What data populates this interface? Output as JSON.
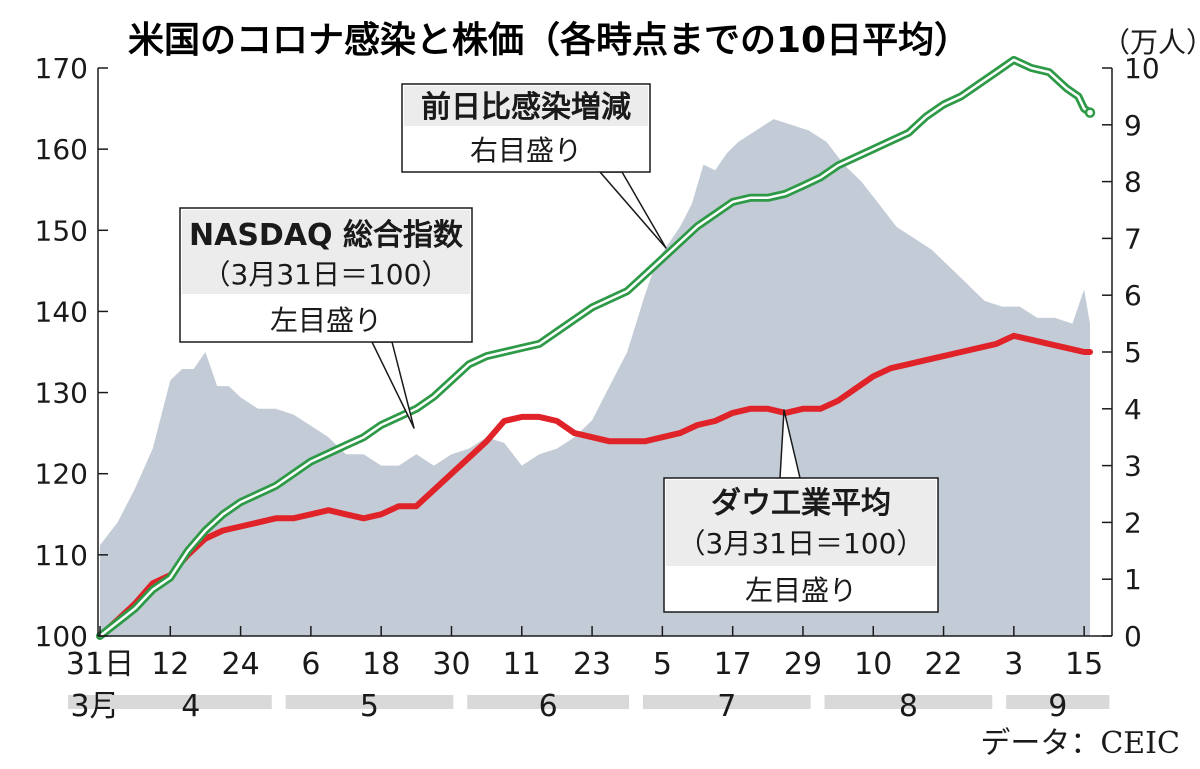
{
  "chart_data": {
    "type": "line",
    "title": "米国のコロナ感染と株価（各時点までの10日平均）",
    "source": "データ：CEIC",
    "x_ticks": [
      "31日",
      "12",
      "24",
      "6",
      "18",
      "30",
      "11",
      "23",
      "5",
      "17",
      "29",
      "10",
      "22",
      "3",
      "15"
    ],
    "month_labels": [
      "3月",
      "4",
      "5",
      "6",
      "7",
      "8",
      "9"
    ],
    "left_axis": {
      "ylim": [
        100,
        170
      ],
      "ticks": [
        "100",
        "110",
        "120",
        "130",
        "140",
        "150",
        "160",
        "170"
      ]
    },
    "right_axis": {
      "unit": "（万人）",
      "ylim": [
        0,
        10
      ],
      "ticks": [
        "0",
        "1",
        "2",
        "3",
        "4",
        "5",
        "6",
        "7",
        "8",
        "9",
        "10"
      ]
    },
    "grid": false,
    "series": [
      {
        "name": "前日比感染増減",
        "axis": "right",
        "type": "area",
        "color": "#c3ccd6",
        "x": [
          "2020-03-31",
          "2020-04-03",
          "2020-04-06",
          "2020-04-09",
          "2020-04-12",
          "2020-04-14",
          "2020-04-16",
          "2020-04-18",
          "2020-04-20",
          "2020-04-22",
          "2020-04-24",
          "2020-04-27",
          "2020-04-30",
          "2020-05-03",
          "2020-05-06",
          "2020-05-09",
          "2020-05-12",
          "2020-05-15",
          "2020-05-18",
          "2020-05-21",
          "2020-05-24",
          "2020-05-27",
          "2020-05-30",
          "2020-06-02",
          "2020-06-05",
          "2020-06-08",
          "2020-06-11",
          "2020-06-14",
          "2020-06-17",
          "2020-06-20",
          "2020-06-23",
          "2020-06-26",
          "2020-06-29",
          "2020-07-02",
          "2020-07-04",
          "2020-07-06",
          "2020-07-08",
          "2020-07-10",
          "2020-07-12",
          "2020-07-14",
          "2020-07-16",
          "2020-07-18",
          "2020-07-21",
          "2020-07-24",
          "2020-07-27",
          "2020-07-30",
          "2020-08-02",
          "2020-08-05",
          "2020-08-08",
          "2020-08-11",
          "2020-08-14",
          "2020-08-17",
          "2020-08-20",
          "2020-08-23",
          "2020-08-26",
          "2020-08-29",
          "2020-09-01",
          "2020-09-04",
          "2020-09-07",
          "2020-09-10",
          "2020-09-13",
          "2020-09-15",
          "2020-09-16"
        ],
        "values": [
          1.6,
          2.0,
          2.6,
          3.3,
          4.5,
          4.7,
          4.7,
          5.0,
          4.4,
          4.4,
          4.2,
          4.0,
          4.0,
          3.9,
          3.7,
          3.5,
          3.2,
          3.2,
          3.0,
          3.0,
          3.2,
          3.0,
          3.2,
          3.3,
          3.5,
          3.4,
          3.0,
          3.2,
          3.3,
          3.5,
          3.8,
          4.4,
          5.0,
          6.0,
          6.6,
          6.9,
          7.2,
          7.6,
          8.3,
          8.2,
          8.5,
          8.7,
          8.9,
          9.1,
          9.0,
          8.9,
          8.7,
          8.3,
          8.0,
          7.6,
          7.2,
          7.0,
          6.8,
          6.5,
          6.2,
          5.9,
          5.8,
          5.8,
          5.6,
          5.6,
          5.5,
          6.1,
          5.5
        ]
      },
      {
        "name": "NASDAQ 総合指数",
        "axis": "left",
        "note": "（3月31日＝100）",
        "color": "#2e9a48",
        "x": [
          "2020-03-31",
          "2020-04-03",
          "2020-04-06",
          "2020-04-09",
          "2020-04-12",
          "2020-04-15",
          "2020-04-18",
          "2020-04-21",
          "2020-04-24",
          "2020-04-27",
          "2020-04-30",
          "2020-05-03",
          "2020-05-06",
          "2020-05-09",
          "2020-05-12",
          "2020-05-15",
          "2020-05-18",
          "2020-05-21",
          "2020-05-24",
          "2020-05-27",
          "2020-05-30",
          "2020-06-02",
          "2020-06-05",
          "2020-06-08",
          "2020-06-11",
          "2020-06-14",
          "2020-06-17",
          "2020-06-20",
          "2020-06-23",
          "2020-06-26",
          "2020-06-29",
          "2020-07-02",
          "2020-07-05",
          "2020-07-08",
          "2020-07-11",
          "2020-07-14",
          "2020-07-17",
          "2020-07-20",
          "2020-07-23",
          "2020-07-26",
          "2020-07-29",
          "2020-08-01",
          "2020-08-04",
          "2020-08-07",
          "2020-08-10",
          "2020-08-13",
          "2020-08-16",
          "2020-08-19",
          "2020-08-22",
          "2020-08-25",
          "2020-08-28",
          "2020-08-31",
          "2020-09-03",
          "2020-09-06",
          "2020-09-09",
          "2020-09-12",
          "2020-09-14",
          "2020-09-15",
          "2020-09-16"
        ],
        "values": [
          100.0,
          101.7,
          103.4,
          105.7,
          107.2,
          110.5,
          113.0,
          115.0,
          116.5,
          117.5,
          118.5,
          120.0,
          121.5,
          122.5,
          123.5,
          124.5,
          126.0,
          127.0,
          128.0,
          129.5,
          131.5,
          133.5,
          134.5,
          135.0,
          135.5,
          136.0,
          137.5,
          139.0,
          140.5,
          141.5,
          142.5,
          144.5,
          146.5,
          148.5,
          150.5,
          152.0,
          153.5,
          154.0,
          154.0,
          154.5,
          155.5,
          156.5,
          158.0,
          159.0,
          160.0,
          161.0,
          162.0,
          164.0,
          165.5,
          166.5,
          168.0,
          169.5,
          171.0,
          170.0,
          169.5,
          167.5,
          166.5,
          165.0,
          164.5
        ]
      },
      {
        "name": "ダウ工業平均",
        "axis": "left",
        "note": "（3月31日＝100）",
        "color": "#e02229",
        "x": [
          "2020-03-31",
          "2020-04-03",
          "2020-04-06",
          "2020-04-09",
          "2020-04-12",
          "2020-04-15",
          "2020-04-18",
          "2020-04-21",
          "2020-04-24",
          "2020-04-27",
          "2020-04-30",
          "2020-05-03",
          "2020-05-06",
          "2020-05-09",
          "2020-05-12",
          "2020-05-15",
          "2020-05-18",
          "2020-05-21",
          "2020-05-24",
          "2020-05-27",
          "2020-05-30",
          "2020-06-02",
          "2020-06-05",
          "2020-06-08",
          "2020-06-11",
          "2020-06-14",
          "2020-06-17",
          "2020-06-20",
          "2020-06-23",
          "2020-06-26",
          "2020-06-29",
          "2020-07-02",
          "2020-07-05",
          "2020-07-08",
          "2020-07-11",
          "2020-07-14",
          "2020-07-17",
          "2020-07-20",
          "2020-07-23",
          "2020-07-26",
          "2020-07-29",
          "2020-08-01",
          "2020-08-04",
          "2020-08-07",
          "2020-08-10",
          "2020-08-13",
          "2020-08-16",
          "2020-08-19",
          "2020-08-22",
          "2020-08-25",
          "2020-08-28",
          "2020-08-31",
          "2020-09-03",
          "2020-09-06",
          "2020-09-09",
          "2020-09-12",
          "2020-09-15",
          "2020-09-16"
        ],
        "values": [
          100.0,
          102.0,
          104.0,
          106.5,
          107.5,
          110.0,
          112.0,
          113.0,
          113.5,
          114.0,
          114.5,
          114.5,
          115.0,
          115.5,
          115.0,
          114.5,
          115.0,
          116.0,
          116.0,
          118.0,
          120.0,
          122.0,
          124.0,
          126.5,
          127.0,
          127.0,
          126.5,
          125.0,
          124.5,
          124.0,
          124.0,
          124.0,
          124.5,
          125.0,
          126.0,
          126.5,
          127.5,
          128.0,
          128.0,
          127.5,
          128.0,
          128.0,
          129.0,
          130.5,
          132.0,
          133.0,
          133.5,
          134.0,
          134.5,
          135.0,
          135.5,
          136.0,
          137.0,
          136.5,
          136.0,
          135.5,
          135.0,
          135.0
        ]
      }
    ],
    "annotations": [
      {
        "series": "前日比感染増減",
        "lines": [
          "前日比感染増減",
          "右目盛り"
        ]
      },
      {
        "series": "NASDAQ 総合指数",
        "lines": [
          "NASDAQ 総合指数",
          "（3月31日＝100）",
          "左目盛り"
        ]
      },
      {
        "series": "ダウ工業平均",
        "lines": [
          "ダウ工業平均",
          "（3月31日＝100）",
          "左目盛り"
        ]
      }
    ]
  }
}
